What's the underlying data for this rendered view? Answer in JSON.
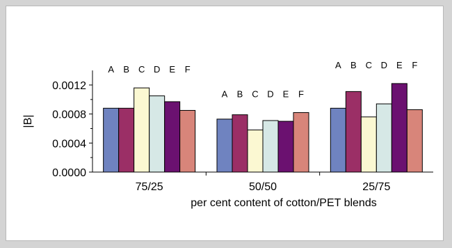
{
  "chart_data": {
    "type": "bar",
    "title": "",
    "xlabel": "per cent content of cotton/PET blends",
    "ylabel": "|B|",
    "ylim": [
      0,
      0.0014
    ],
    "yticks": [
      "0.0000",
      "0.0004",
      "0.0008",
      "0.0012"
    ],
    "categories": [
      "75/25",
      "50/50",
      "25/75"
    ],
    "series": [
      {
        "name": "A",
        "color": "#6f83c0",
        "values": [
          0.00088,
          0.00073,
          0.00088
        ]
      },
      {
        "name": "B",
        "color": "#9b2f66",
        "values": [
          0.00088,
          0.00079,
          0.00111
        ]
      },
      {
        "name": "C",
        "color": "#fbf8d2",
        "values": [
          0.00116,
          0.00058,
          0.00076
        ]
      },
      {
        "name": "D",
        "color": "#d6e8e6",
        "values": [
          0.00105,
          0.00071,
          0.00094
        ]
      },
      {
        "name": "E",
        "color": "#6b1170",
        "values": [
          0.00097,
          0.0007,
          0.00122
        ]
      },
      {
        "name": "F",
        "color": "#d8857a",
        "values": [
          0.00085,
          0.00082,
          0.00086
        ]
      }
    ],
    "legend": "letters above bars",
    "grid": false
  }
}
